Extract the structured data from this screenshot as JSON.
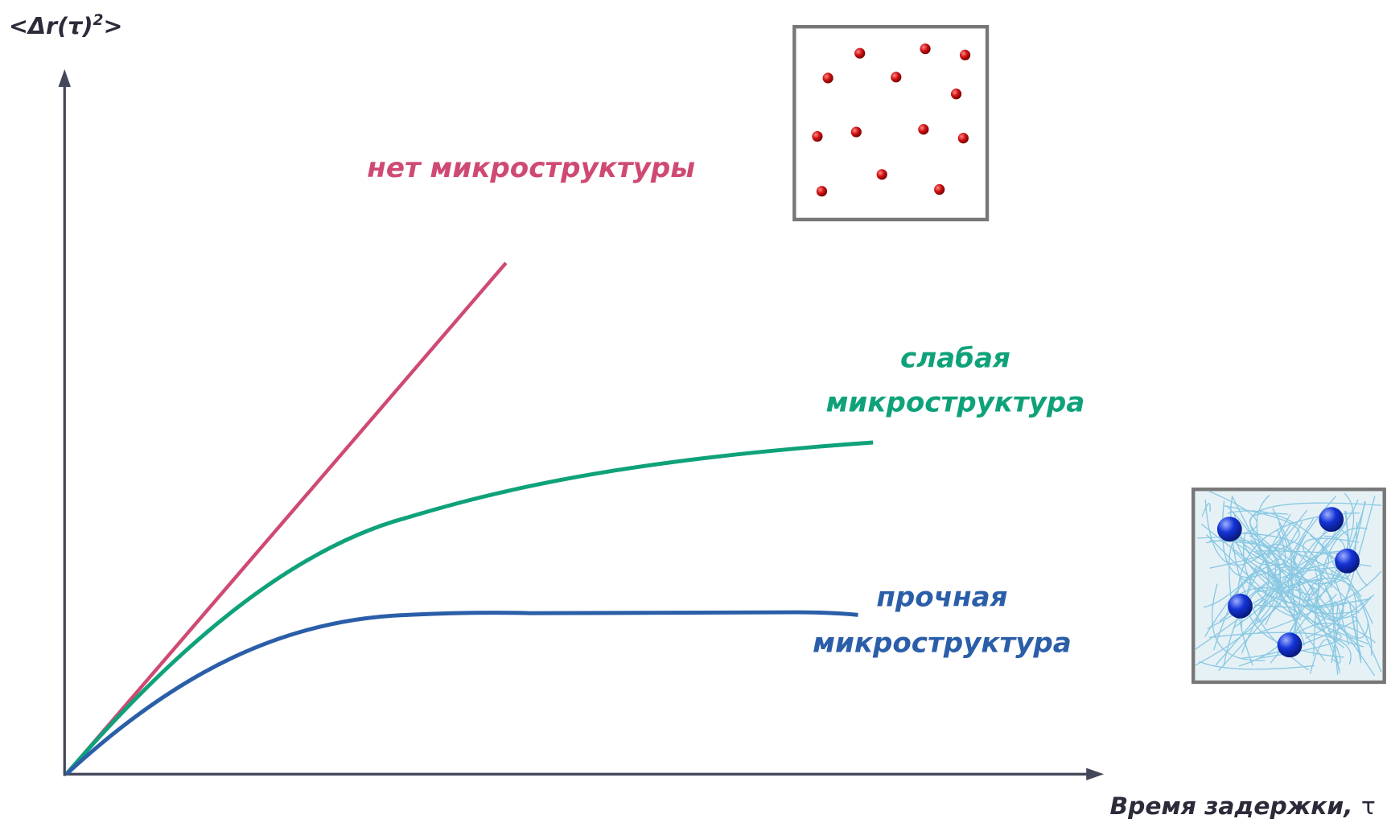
{
  "y_axis_label": {
    "base": "<Δr(τ)",
    "sup": "2",
    "end": ">"
  },
  "x_axis_label": {
    "text": "Время задержки,",
    "symbol": "τ"
  },
  "curves": [
    {
      "lines": [
        "нет микроструктуры"
      ]
    },
    {
      "lines": [
        "слабая",
        "микроструктура"
      ]
    },
    {
      "lines": [
        "прочная",
        "микроструктура"
      ]
    }
  ]
}
